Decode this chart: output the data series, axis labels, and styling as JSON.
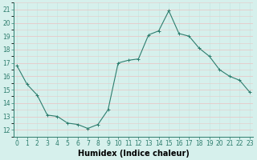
{
  "x": [
    0,
    1,
    2,
    3,
    4,
    5,
    6,
    7,
    8,
    9,
    10,
    11,
    12,
    13,
    14,
    15,
    16,
    17,
    18,
    19,
    20,
    21,
    22,
    23
  ],
  "y": [
    16.8,
    15.4,
    14.6,
    13.1,
    13.0,
    12.5,
    12.4,
    12.1,
    12.4,
    13.5,
    17.0,
    17.2,
    17.3,
    19.1,
    19.4,
    20.9,
    19.2,
    19.0,
    18.1,
    17.5,
    16.5,
    16.0,
    15.7,
    14.8
  ],
  "line_color": "#2e7d6e",
  "marker": "+",
  "marker_size": 3,
  "bg_color": "#d6f0ec",
  "grid_color_x": "#c8e8e4",
  "grid_color_y_major": "#e8c8c8",
  "xlabel": "Humidex (Indice chaleur)",
  "xlabel_fontsize": 7,
  "xlabel_fontweight": "bold",
  "ylim": [
    11.5,
    21.5
  ],
  "yticks": [
    12,
    13,
    14,
    15,
    16,
    17,
    18,
    19,
    20,
    21
  ],
  "xticks": [
    0,
    1,
    2,
    3,
    4,
    5,
    6,
    7,
    8,
    9,
    10,
    11,
    12,
    13,
    14,
    15,
    16,
    17,
    18,
    19,
    20,
    21,
    22,
    23
  ],
  "tick_fontsize": 5.5,
  "tick_color": "#2e7d6e",
  "spine_color": "#2e7d6e",
  "xlim": [
    -0.3,
    23.3
  ]
}
